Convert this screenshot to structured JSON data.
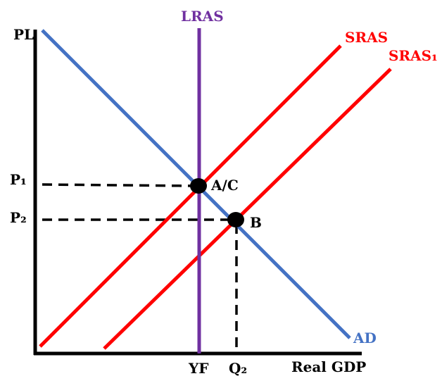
{
  "labels": {
    "lras": "LRAS",
    "sras": "SRAS",
    "sras1": "SRAS₁",
    "ad": "AD",
    "p_l": "PL",
    "p1": "P₁",
    "p2": "P₂",
    "yf": "YF",
    "q2": "Q₂",
    "x_axis": "Real GDP",
    "point_ac": "A/C",
    "point_b": "B"
  },
  "colors": {
    "lras": "#7030a0",
    "sras": "#ff0000",
    "ad": "#4472c4",
    "axis": "#000000",
    "text": "#000000"
  }
}
